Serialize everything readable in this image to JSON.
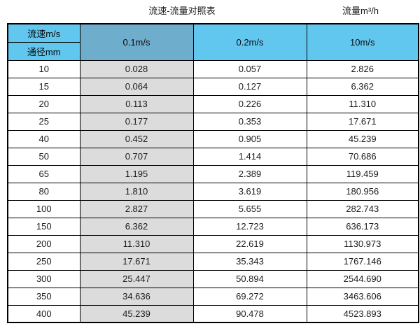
{
  "header": {
    "title": "流速-流量对照表",
    "unit_label": "流量m³/h"
  },
  "table": {
    "corner_top": "流速m/s",
    "corner_bottom": "通径mm",
    "columns": [
      "0.1m/s",
      "0.2m/s",
      "10m/s"
    ],
    "rows": [
      [
        "10",
        "0.028",
        "0.057",
        "2.826"
      ],
      [
        "15",
        "0.064",
        "0.127",
        "6.362"
      ],
      [
        "20",
        "0.113",
        "0.226",
        "11.310"
      ],
      [
        "25",
        "0.177",
        "0.353",
        "17.671"
      ],
      [
        "40",
        "0.452",
        "0.905",
        "45.239"
      ],
      [
        "50",
        "0.707",
        "1.414",
        "70.686"
      ],
      [
        "65",
        "1.195",
        "2.389",
        "119.459"
      ],
      [
        "80",
        "1.810",
        "3.619",
        "180.956"
      ],
      [
        "100",
        "2.827",
        "5.655",
        "282.743"
      ],
      [
        "150",
        "6.362",
        "12.723",
        "636.173"
      ],
      [
        "200",
        "11.310",
        "22.619",
        "1130.973"
      ],
      [
        "250",
        "17.671",
        "35.343",
        "1767.146"
      ],
      [
        "300",
        "25.447",
        "50.894",
        "2544.690"
      ],
      [
        "350",
        "34.636",
        "69.272",
        "3463.606"
      ],
      [
        "400",
        "45.239",
        "90.478",
        "4523.893"
      ]
    ]
  },
  "colors": {
    "header_cyan": "#62c7ef",
    "header_dark_blue": "#6fadcd",
    "shaded_column_gray": "#dcdcdc",
    "border_black": "#000000"
  }
}
